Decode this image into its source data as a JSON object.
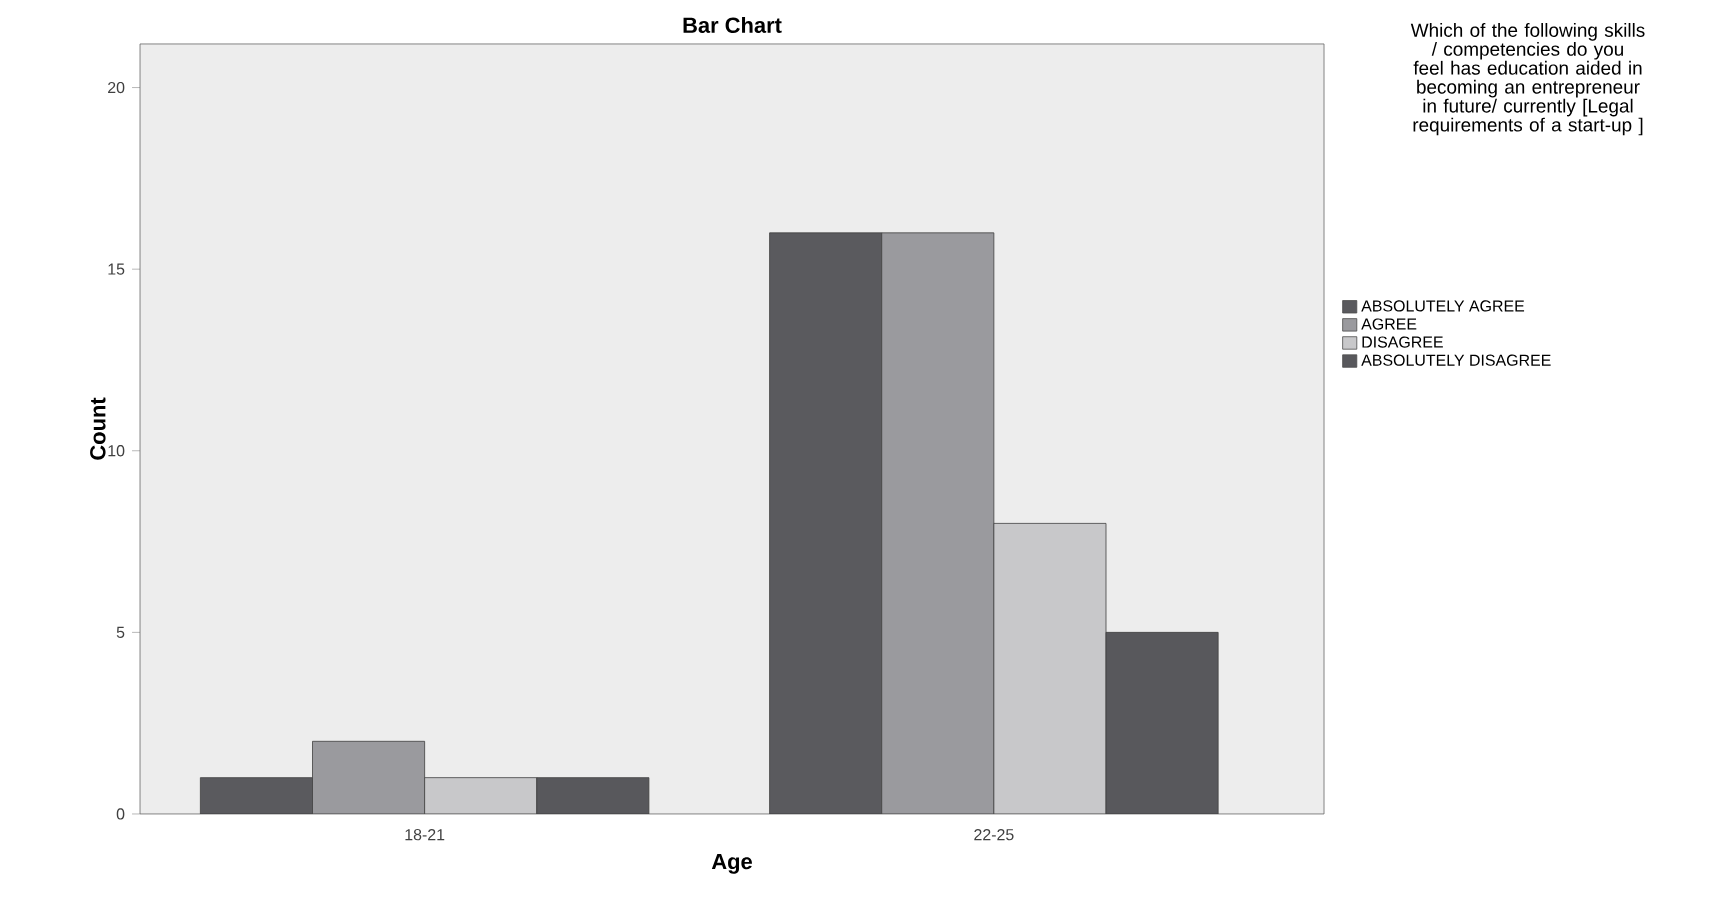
{
  "chart_data": {
    "type": "bar",
    "title": "Bar Chart",
    "xlabel": "Age",
    "ylabel": "Count",
    "legend_title": "Which of the following skills / competencies do you feel has education aided  in becoming an entrepreneur in future/ currently [Legal requirements of a start-up ]",
    "categories": [
      "18-21",
      "22-25"
    ],
    "series": [
      {
        "name": "ABSOLUTELY AGREE",
        "color": "#5a5a5e",
        "values": [
          1,
          16
        ]
      },
      {
        "name": "AGREE",
        "color": "#9a9a9e",
        "values": [
          2,
          16
        ]
      },
      {
        "name": "DISAGREE",
        "color": "#c8c8ca",
        "values": [
          1,
          8
        ]
      },
      {
        "name": "ABSOLUTELY DISAGREE",
        "color": "#58585c",
        "values": [
          1,
          5
        ]
      }
    ],
    "ylim": [
      0,
      21.2
    ],
    "yticks": [
      0,
      5,
      10,
      15,
      20
    ],
    "legend": "right"
  }
}
